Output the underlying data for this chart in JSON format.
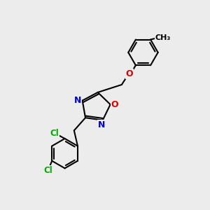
{
  "bg_color": "#ececec",
  "bond_color": "#000000",
  "bond_width": 1.5,
  "atom_colors": {
    "N": "#0000dd",
    "O": "#dd0000",
    "Cl": "#00aa00"
  },
  "font_size_atom": 9,
  "font_size_cl": 8.5,
  "font_size_me": 8
}
